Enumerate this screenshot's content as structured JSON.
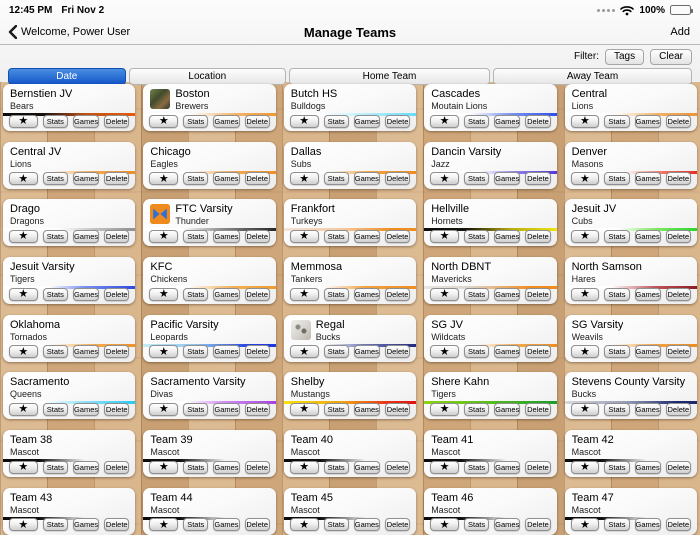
{
  "status_bar": {
    "time": "12:45 PM",
    "date": "Fri Nov 2",
    "battery_percent": "100%"
  },
  "nav": {
    "back_label": "Welcome, Power User",
    "title": "Manage Teams",
    "add_label": "Add"
  },
  "filter": {
    "label": "Filter:",
    "tags_label": "Tags",
    "clear_label": "Clear"
  },
  "segments": [
    {
      "label": "Date",
      "selected": true
    },
    {
      "label": "Location",
      "selected": false
    },
    {
      "label": "Home Team",
      "selected": false
    },
    {
      "label": "Away Team",
      "selected": false
    }
  ],
  "card_actions": {
    "star_glyph": "★",
    "stats_label": "Stats",
    "games_label": "Games",
    "delete_label": "Delete"
  },
  "colors": {
    "selected_segment_blue": "#1257c8",
    "header_background": "#f5f5f5",
    "wood_floor": "#d8b286"
  },
  "teams": [
    {
      "name": "Bernstien JV",
      "mascot": "Bears",
      "logo": null,
      "bar_gradient": "linear-gradient(90deg,#0c0c0c 0%,#151210 30%,#c05212 62%,#e65c0e 100%)"
    },
    {
      "name": "Boston",
      "mascot": "Brewers",
      "logo": "photo-thumbnail",
      "bar_gradient": "linear-gradient(90deg,#ffffff 35%,#f4b469 70%,#ef9833 100%)"
    },
    {
      "name": "Butch HS",
      "mascot": "Bulldogs",
      "logo": null,
      "bar_gradient": "linear-gradient(90deg,#ffffff 28%,#c9f2fb 55%,#66dcf6 100%)"
    },
    {
      "name": "Cascades",
      "mascot": "Moutain Lions",
      "logo": null,
      "bar_gradient": "linear-gradient(90deg,#ffffff 35%,#7d93f0 65%,#2b50e8 100%)"
    },
    {
      "name": "Central",
      "mascot": "Lions",
      "logo": null,
      "bar_gradient": "linear-gradient(90deg,#ffffff 38%,#f3b269 70%,#ee9335 100%)"
    },
    {
      "name": "Central JV",
      "mascot": "Lions",
      "logo": null,
      "bar_gradient": "linear-gradient(90deg,#ffffff 35%,#f2a953 68%,#ee8d24 100%)"
    },
    {
      "name": "Chicago",
      "mascot": "Eagles",
      "logo": null,
      "bar_gradient": "linear-gradient(90deg,#ffffff 35%,#f2a953 68%,#ee8d24 100%)"
    },
    {
      "name": "Dallas",
      "mascot": "Subs",
      "logo": null,
      "bar_gradient": "linear-gradient(90deg,#ffffff 32%,#f2a243 66%,#ef8c1c 100%)"
    },
    {
      "name": "Dancin Varsity",
      "mascot": "Jazz",
      "logo": null,
      "bar_gradient": "linear-gradient(90deg,#ffffff 42%,#8f7ae8 70%,#5636d8 100%)"
    },
    {
      "name": "Denver",
      "mascot": "Masons",
      "logo": null,
      "bar_gradient": "linear-gradient(90deg,#ffffff 45%,#f07a6a 72%,#e62e22 100%)"
    },
    {
      "name": "Drago",
      "mascot": "Dragons",
      "logo": null,
      "bar_gradient": "linear-gradient(90deg,#ffffff 42%,#c2c2c2 70%,#8f8f8f 100%)"
    },
    {
      "name": "FTC Varsity",
      "mascot": "Thunder",
      "logo": "orange-blue-emblem",
      "bar_gradient": "linear-gradient(90deg,#ffffff 30%,#8a8a8a 60%,#262626 100%)"
    },
    {
      "name": "Frankfort",
      "mascot": "Turkeys",
      "logo": null,
      "bar_gradient": "linear-gradient(90deg,#f6e3da 0%,#f3c89e 45%,#ef8d20 82%,#ef8d20 100%)"
    },
    {
      "name": "Hellville",
      "mascot": "Hornets",
      "logo": null,
      "bar_gradient": "linear-gradient(90deg,#0c0c0c 0%,#17150a 32%,#b7ab12 65%,#efe512 100%)"
    },
    {
      "name": "Jesuit JV",
      "mascot": "Cubs",
      "logo": null,
      "bar_gradient": "linear-gradient(90deg,#ffffff 40%,#84e768 68%,#2bd52b 100%)"
    },
    {
      "name": "Jesuit Varsity",
      "mascot": "Tigers",
      "logo": null,
      "bar_gradient": "linear-gradient(90deg,#ffffff 35%,#7a8fee 62%,#2b4ae4 100%)"
    },
    {
      "name": "KFC",
      "mascot": "Chickens",
      "logo": null,
      "bar_gradient": "linear-gradient(90deg,#ffffff 33%,#f3af58 68%,#ef9a2e 100%)"
    },
    {
      "name": "Memmosa",
      "mascot": "Tankers",
      "logo": null,
      "bar_gradient": "linear-gradient(90deg,#ffffff 30%,#f2a243 62%,#ef8d1f 100%)"
    },
    {
      "name": "North DBNT",
      "mascot": "Mavericks",
      "logo": null,
      "bar_gradient": "linear-gradient(90deg,#e9e7e4 0%,#ddd5c9 35%,#ef8d20 80%,#ef8d20 100%)"
    },
    {
      "name": "North Samson",
      "mascot": "Hares",
      "logo": null,
      "bar_gradient": "linear-gradient(90deg,#ffffff 35%,#c0565c 68%,#8e1b24 100%)"
    },
    {
      "name": "Oklahoma",
      "mascot": "Tornados",
      "logo": null,
      "bar_gradient": "linear-gradient(90deg,#ffffff 35%,#f3a94e 70%,#ef9226 100%)"
    },
    {
      "name": "Pacific Varsity",
      "mascot": "Leopards",
      "logo": null,
      "bar_gradient": "linear-gradient(90deg,#c2eef7 0%,#8fc4f0 40%,#2746e2 78%,#1b35e0 100%)"
    },
    {
      "name": "Regal",
      "mascot": "Bucks",
      "logo": "pencil-sketch",
      "bar_gradient": "linear-gradient(90deg,#ffffff 30%,#6b74b5 62%,#202b80 100%)"
    },
    {
      "name": "SG JV",
      "mascot": "Wildcats",
      "logo": null,
      "bar_gradient": "linear-gradient(90deg,#ffffff 38%,#f3a94e 70%,#ee8d20 100%)"
    },
    {
      "name": "SG Varsity",
      "mascot": "Weavils",
      "logo": null,
      "bar_gradient": "linear-gradient(90deg,#ffffff 35%,#f3a243 68%,#ee8d20 100%)"
    },
    {
      "name": "Sacramento",
      "mascot": "Queens",
      "logo": null,
      "bar_gradient": "linear-gradient(90deg,#ffffff 32%,#8fe2f8 62%,#29c8f5 100%)"
    },
    {
      "name": "Sacramento Varsity",
      "mascot": "Divas",
      "logo": null,
      "bar_gradient": "linear-gradient(90deg,#ffffff 32%,#d08df4 62%,#a83fe0 100%)"
    },
    {
      "name": "Shelby",
      "mascot": "Mustangs",
      "logo": null,
      "bar_gradient": "linear-gradient(90deg,#f4e40a 0%,#f0a312 45%,#e93415 78%,#e01212 100%)"
    },
    {
      "name": "Shere Kahn",
      "mascot": "Tigers",
      "logo": null,
      "bar_gradient": "linear-gradient(90deg,#8ed411 0%,#5cc01d 45%,#189d2c 100%)"
    },
    {
      "name": "Stevens County Varsity",
      "mascot": "Bucks",
      "logo": null,
      "bar_gradient": "linear-gradient(90deg,#d9d9d9 0%,#9aa0b8 45%,#1d2a6e 85%,#1d2a6e 100%)"
    },
    {
      "name": "Team 38",
      "mascot": "Mascot",
      "logo": null,
      "bar_gradient": "linear-gradient(90deg,#0a0a0a 0%,#111111 28%,rgba(20,20,20,0) 62%)"
    },
    {
      "name": "Team 39",
      "mascot": "Mascot",
      "logo": null,
      "bar_gradient": "linear-gradient(90deg,#0a0a0a 0%,#111111 28%,rgba(20,20,20,0) 62%)"
    },
    {
      "name": "Team 40",
      "mascot": "Mascot",
      "logo": null,
      "bar_gradient": "linear-gradient(90deg,#0a0a0a 0%,#111111 28%,rgba(20,20,20,0) 62%)"
    },
    {
      "name": "Team 41",
      "mascot": "Mascot",
      "logo": null,
      "bar_gradient": "linear-gradient(90deg,#0a0a0a 0%,#111111 28%,rgba(20,20,20,0) 62%)"
    },
    {
      "name": "Team 42",
      "mascot": "Mascot",
      "logo": null,
      "bar_gradient": "linear-gradient(90deg,#0a0a0a 0%,#111111 28%,rgba(20,20,20,0) 62%)"
    },
    {
      "name": "Team 43",
      "mascot": "Mascot",
      "logo": null,
      "bar_gradient": "linear-gradient(90deg,#0a0a0a 0%,#111111 28%,rgba(20,20,20,0) 62%)"
    },
    {
      "name": "Team 44",
      "mascot": "Mascot",
      "logo": null,
      "bar_gradient": "linear-gradient(90deg,#0a0a0a 0%,#111111 28%,rgba(20,20,20,0) 62%)"
    },
    {
      "name": "Team 45",
      "mascot": "Mascot",
      "logo": null,
      "bar_gradient": "linear-gradient(90deg,#0a0a0a 0%,#111111 28%,rgba(20,20,20,0) 62%)"
    },
    {
      "name": "Team 46",
      "mascot": "Mascot",
      "logo": null,
      "bar_gradient": "linear-gradient(90deg,#0a0a0a 0%,#111111 28%,rgba(20,20,20,0) 62%)"
    },
    {
      "name": "Team 47",
      "mascot": "Mascot",
      "logo": null,
      "bar_gradient": "linear-gradient(90deg,#0a0a0a 0%,#111111 28%,rgba(20,20,20,0) 62%)"
    }
  ]
}
